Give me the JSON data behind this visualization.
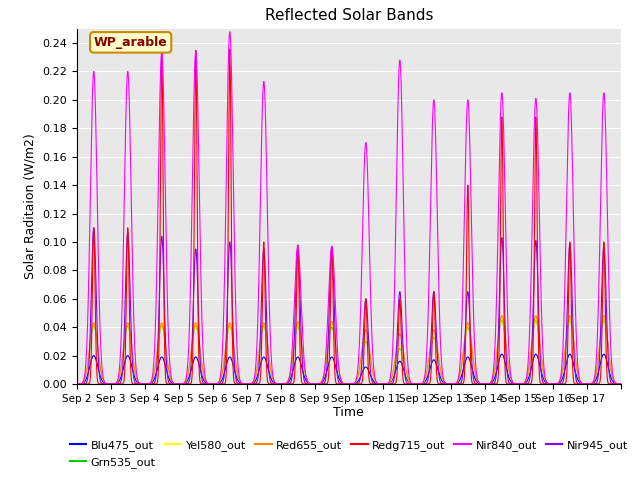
{
  "title": "Reflected Solar Bands",
  "xlabel": "Time",
  "ylabel": "Solar Raditaion (W/m2)",
  "annotation_text": "WP_arable",
  "annotation_bg": "#FFFFCC",
  "annotation_border": "#CC8800",
  "annotation_text_color": "#880000",
  "plot_bg": "#E8E8E8",
  "ylim": [
    0.0,
    0.25
  ],
  "yticks": [
    0.0,
    0.02,
    0.04,
    0.06,
    0.08,
    0.1,
    0.12,
    0.14,
    0.16,
    0.18,
    0.2,
    0.22,
    0.24
  ],
  "xtick_labels": [
    "Sep 2",
    "Sep 3",
    "Sep 4",
    "Sep 5",
    "Sep 6",
    "Sep 7",
    "Sep 8",
    "Sep 9",
    "Sep 10",
    "Sep 11",
    "Sep 12",
    "Sep 13",
    "Sep 14",
    "Sep 15",
    "Sep 16",
    "Sep 17"
  ],
  "series": [
    {
      "name": "Blu475_out",
      "color": "#0000FF"
    },
    {
      "name": "Grn535_out",
      "color": "#00CC00"
    },
    {
      "name": "Yel580_out",
      "color": "#FFFF00"
    },
    {
      "name": "Red655_out",
      "color": "#FF8800"
    },
    {
      "name": "Redg715_out",
      "color": "#FF0000"
    },
    {
      "name": "Nir840_out",
      "color": "#FF00FF"
    },
    {
      "name": "Nir945_out",
      "color": "#8800FF"
    }
  ],
  "num_days": 16,
  "samples_per_day": 288,
  "peak_values": {
    "Blu475_out": [
      0.02,
      0.02,
      0.019,
      0.019,
      0.019,
      0.019,
      0.019,
      0.019,
      0.012,
      0.016,
      0.017,
      0.019,
      0.021,
      0.021,
      0.021,
      0.021
    ],
    "Grn535_out": [
      0.041,
      0.041,
      0.041,
      0.041,
      0.041,
      0.041,
      0.041,
      0.04,
      0.03,
      0.025,
      0.033,
      0.04,
      0.045,
      0.045,
      0.045,
      0.045
    ],
    "Yel580_out": [
      0.042,
      0.042,
      0.042,
      0.042,
      0.042,
      0.042,
      0.042,
      0.042,
      0.031,
      0.026,
      0.034,
      0.041,
      0.046,
      0.046,
      0.046,
      0.046
    ],
    "Red655_out": [
      0.043,
      0.043,
      0.043,
      0.043,
      0.043,
      0.043,
      0.044,
      0.044,
      0.038,
      0.035,
      0.038,
      0.043,
      0.048,
      0.048,
      0.048,
      0.048
    ],
    "Redg715_out": [
      0.11,
      0.11,
      0.235,
      0.235,
      0.236,
      0.1,
      0.098,
      0.097,
      0.06,
      0.06,
      0.065,
      0.14,
      0.188,
      0.188,
      0.1,
      0.1
    ],
    "Nir840_out": [
      0.22,
      0.22,
      0.234,
      0.234,
      0.248,
      0.213,
      0.097,
      0.097,
      0.17,
      0.228,
      0.2,
      0.2,
      0.205,
      0.201,
      0.205,
      0.205
    ],
    "Nir945_out": [
      0.11,
      0.107,
      0.104,
      0.095,
      0.1,
      0.095,
      0.095,
      0.096,
      0.06,
      0.065,
      0.065,
      0.065,
      0.103,
      0.101,
      0.099,
      0.097
    ]
  },
  "bell_sigma": {
    "Blu475_out": 0.12,
    "Grn535_out": 0.12,
    "Yel580_out": 0.12,
    "Red655_out": 0.12,
    "Redg715_out": 0.04,
    "Nir840_out": 0.1,
    "Nir945_out": 0.07
  }
}
